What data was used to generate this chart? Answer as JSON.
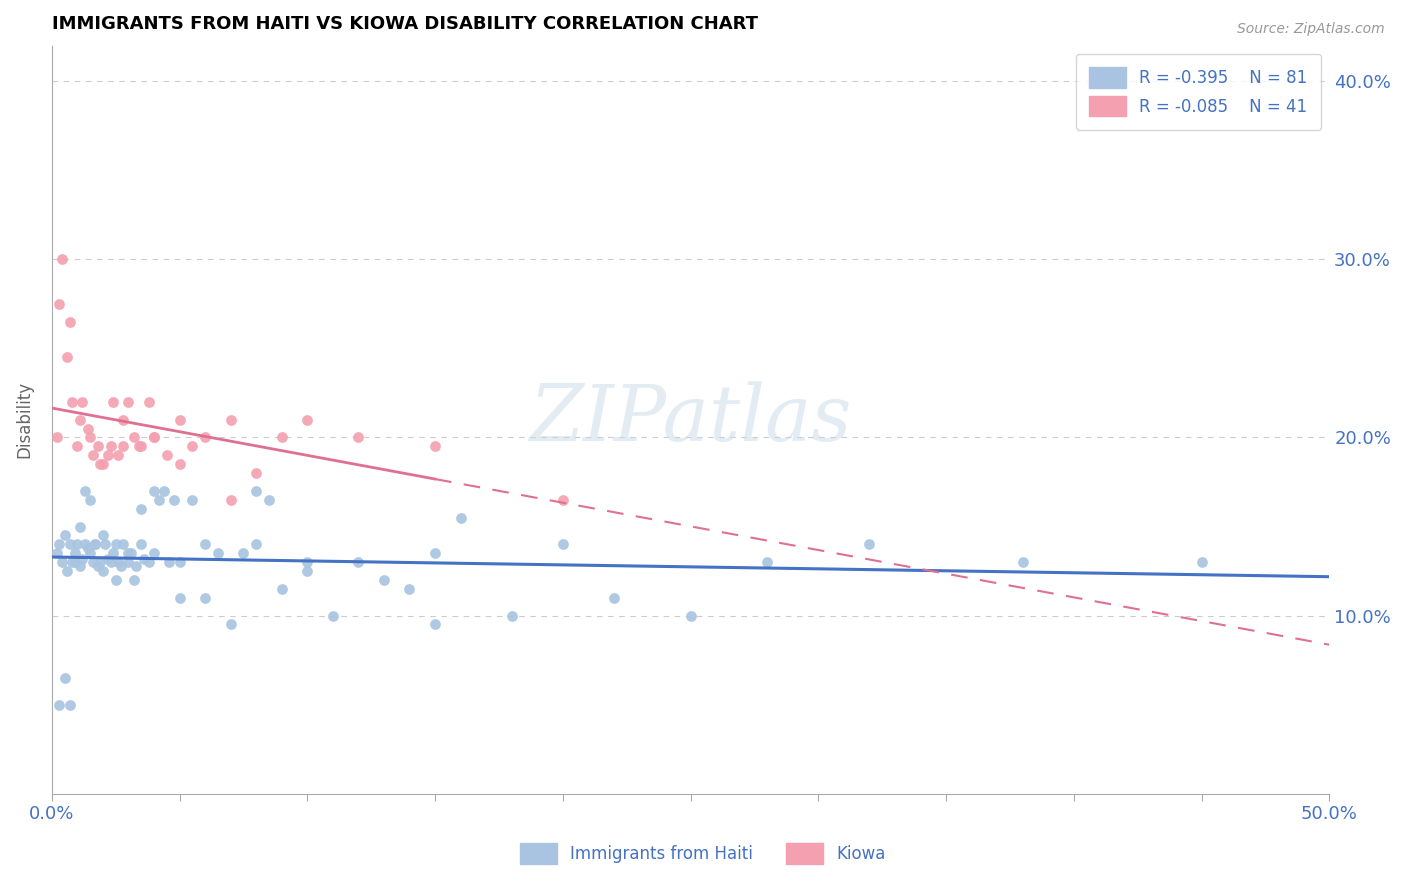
{
  "title": "IMMIGRANTS FROM HAITI VS KIOWA DISABILITY CORRELATION CHART",
  "source": "Source: ZipAtlas.com",
  "ylabel": "Disability",
  "xlim": [
    0.0,
    0.5
  ],
  "ylim": [
    0.0,
    0.42
  ],
  "yticks": [
    0.0,
    0.1,
    0.2,
    0.3,
    0.4
  ],
  "yticklabels": [
    "",
    "10.0%",
    "20.0%",
    "30.0%",
    "40.0%"
  ],
  "xticks": [
    0.0,
    0.05,
    0.1,
    0.15,
    0.2,
    0.25,
    0.3,
    0.35,
    0.4,
    0.45,
    0.5
  ],
  "background_color": "#ffffff",
  "haiti_color": "#a8c4e0",
  "kiowa_color": "#f4a0b0",
  "haiti_line_color": "#4472c4",
  "kiowa_line_color": "#e07090",
  "axis_color": "#4472c4",
  "legend_r_haiti": "R = -0.395",
  "legend_n_haiti": "N = 81",
  "legend_r_kiowa": "R = -0.085",
  "legend_n_kiowa": "N = 41",
  "watermark": "ZIPatlas",
  "haiti_scatter_x": [
    0.002,
    0.003,
    0.004,
    0.005,
    0.006,
    0.007,
    0.008,
    0.009,
    0.01,
    0.011,
    0.012,
    0.013,
    0.014,
    0.015,
    0.016,
    0.017,
    0.018,
    0.019,
    0.02,
    0.021,
    0.022,
    0.023,
    0.024,
    0.025,
    0.026,
    0.027,
    0.028,
    0.03,
    0.031,
    0.032,
    0.033,
    0.035,
    0.036,
    0.038,
    0.04,
    0.042,
    0.044,
    0.046,
    0.048,
    0.05,
    0.055,
    0.06,
    0.065,
    0.07,
    0.075,
    0.08,
    0.085,
    0.09,
    0.1,
    0.11,
    0.12,
    0.13,
    0.14,
    0.15,
    0.16,
    0.18,
    0.2,
    0.22,
    0.25,
    0.28,
    0.32,
    0.38,
    0.45,
    0.003,
    0.005,
    0.007,
    0.009,
    0.011,
    0.013,
    0.015,
    0.017,
    0.02,
    0.025,
    0.03,
    0.035,
    0.04,
    0.05,
    0.06,
    0.08,
    0.1,
    0.15
  ],
  "haiti_scatter_y": [
    0.135,
    0.14,
    0.13,
    0.145,
    0.125,
    0.14,
    0.13,
    0.135,
    0.14,
    0.128,
    0.132,
    0.14,
    0.138,
    0.135,
    0.13,
    0.14,
    0.128,
    0.13,
    0.125,
    0.14,
    0.132,
    0.13,
    0.135,
    0.12,
    0.13,
    0.128,
    0.14,
    0.13,
    0.135,
    0.12,
    0.128,
    0.14,
    0.132,
    0.13,
    0.17,
    0.165,
    0.17,
    0.13,
    0.165,
    0.11,
    0.165,
    0.11,
    0.135,
    0.095,
    0.135,
    0.14,
    0.165,
    0.115,
    0.13,
    0.1,
    0.13,
    0.12,
    0.115,
    0.095,
    0.155,
    0.1,
    0.14,
    0.11,
    0.1,
    0.13,
    0.14,
    0.13,
    0.13,
    0.05,
    0.065,
    0.05,
    0.13,
    0.15,
    0.17,
    0.165,
    0.14,
    0.145,
    0.14,
    0.135,
    0.16,
    0.135,
    0.13,
    0.14,
    0.17,
    0.125,
    0.135
  ],
  "kiowa_scatter_x": [
    0.002,
    0.004,
    0.006,
    0.008,
    0.01,
    0.012,
    0.014,
    0.016,
    0.018,
    0.02,
    0.022,
    0.024,
    0.026,
    0.028,
    0.03,
    0.032,
    0.035,
    0.038,
    0.04,
    0.045,
    0.05,
    0.055,
    0.06,
    0.07,
    0.08,
    0.09,
    0.1,
    0.12,
    0.15,
    0.2,
    0.003,
    0.007,
    0.011,
    0.015,
    0.019,
    0.023,
    0.028,
    0.034,
    0.04,
    0.05,
    0.07
  ],
  "kiowa_scatter_y": [
    0.2,
    0.3,
    0.245,
    0.22,
    0.195,
    0.22,
    0.205,
    0.19,
    0.195,
    0.185,
    0.19,
    0.22,
    0.19,
    0.195,
    0.22,
    0.2,
    0.195,
    0.22,
    0.2,
    0.19,
    0.21,
    0.195,
    0.2,
    0.21,
    0.18,
    0.2,
    0.21,
    0.2,
    0.195,
    0.165,
    0.275,
    0.265,
    0.21,
    0.2,
    0.185,
    0.195,
    0.21,
    0.195,
    0.2,
    0.185,
    0.165
  ]
}
